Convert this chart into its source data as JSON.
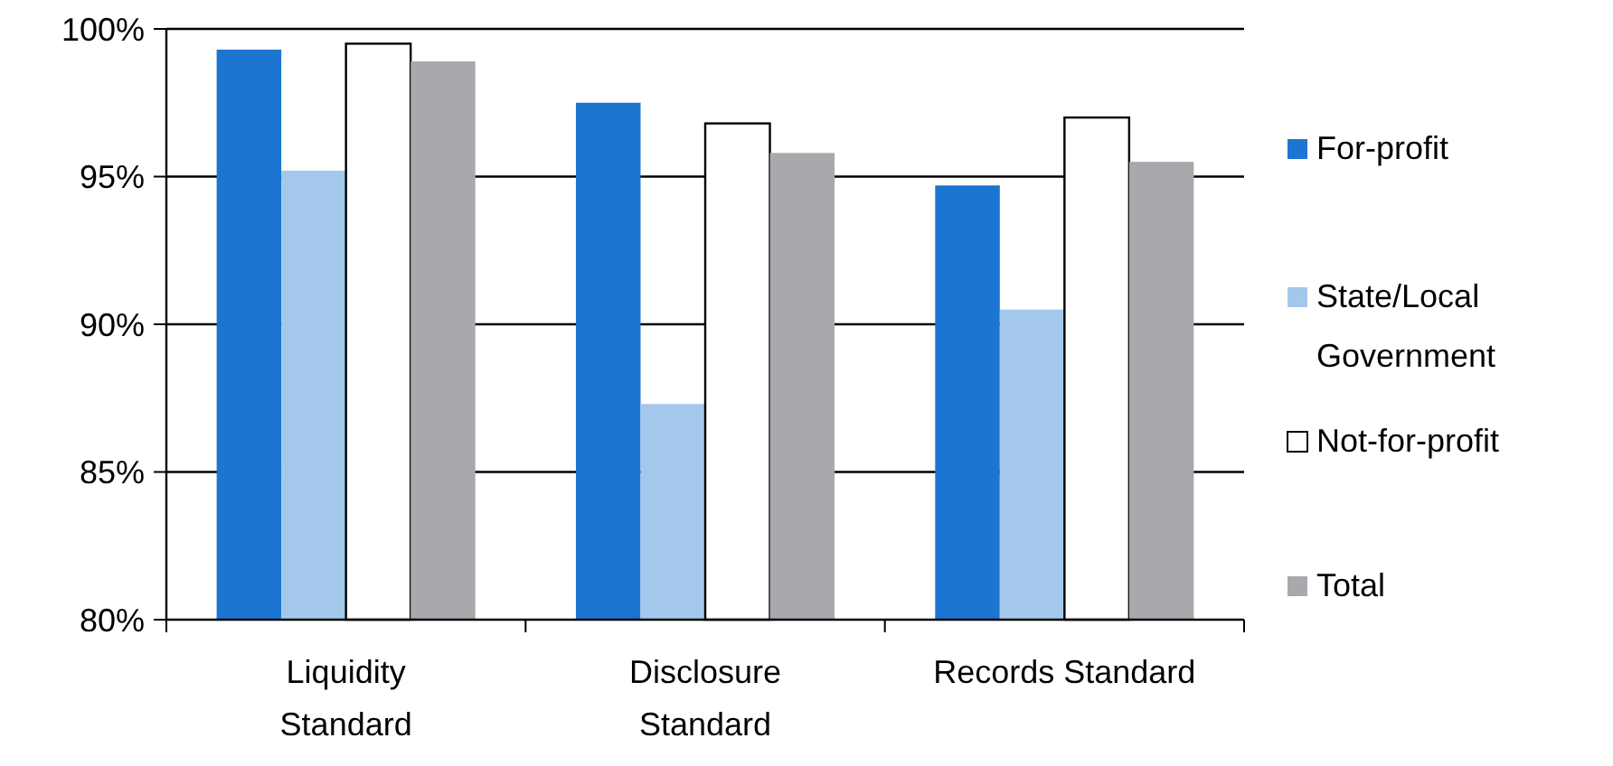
{
  "chart_data": {
    "type": "bar",
    "categories": [
      "Liquidity\nStandard",
      "Disclosure\nStandard",
      "Records Standard"
    ],
    "series": [
      {
        "name": "For-profit",
        "color": "#1c75d0",
        "values": [
          99.3,
          97.5,
          94.7
        ]
      },
      {
        "name": "State/Local\nGovernment",
        "color": "#a4c8ec",
        "values": [
          95.2,
          87.3,
          90.5
        ]
      },
      {
        "name": "Not-for-profit",
        "color": "#ffffff",
        "values": [
          99.5,
          96.8,
          97.0
        ]
      },
      {
        "name": "Total",
        "color": "#a8a9ad",
        "values": [
          98.9,
          95.8,
          95.5
        ]
      }
    ],
    "ylim": [
      80,
      100
    ],
    "yticks": [
      {
        "value": 80,
        "label": "80%"
      },
      {
        "value": 85,
        "label": "85%"
      },
      {
        "value": 90,
        "label": "90%"
      },
      {
        "value": 95,
        "label": "95%"
      },
      {
        "value": 100,
        "label": "100%"
      }
    ],
    "grid": "y",
    "legend": "right"
  }
}
